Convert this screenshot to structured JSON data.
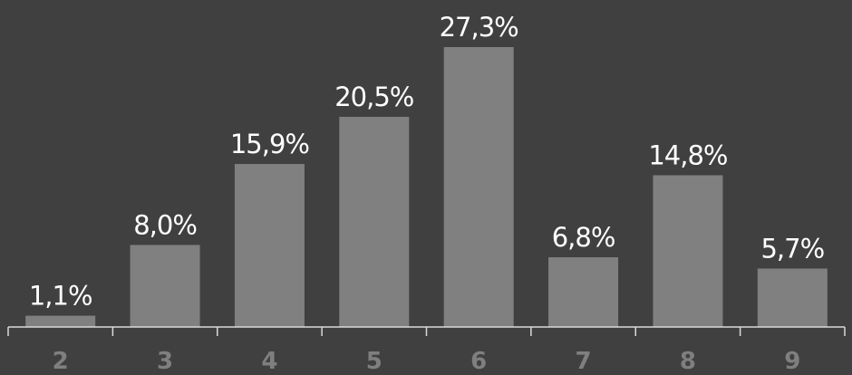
{
  "chart_data": {
    "type": "bar",
    "categories": [
      "2",
      "3",
      "4",
      "5",
      "6",
      "7",
      "8",
      "9"
    ],
    "values": [
      1.1,
      8.0,
      15.9,
      20.5,
      27.3,
      6.8,
      14.8,
      5.7
    ],
    "data_labels": [
      "1,1%",
      "8,0%",
      "15,9%",
      "20,5%",
      "27,3%",
      "6,8%",
      "14,8%",
      "5,7%"
    ],
    "ylim": [
      0,
      27.3
    ],
    "title": "",
    "xlabel": "",
    "ylabel": "",
    "grid": false,
    "legend": "none",
    "colors": {
      "background": "#404040",
      "bar": "#808080",
      "axis": "#d9d9d9",
      "data_label": "#ffffff",
      "tick_label": "#7f7f7f"
    }
  }
}
